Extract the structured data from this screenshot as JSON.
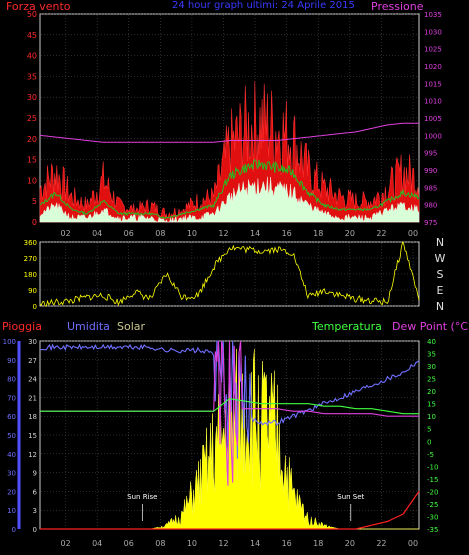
{
  "header": {
    "left_label": "Forza vento",
    "center_label": "24 hour graph ultimi: 24 Aprile 2015",
    "right_label": "Pressione",
    "colors": {
      "left": "#ff2a2a",
      "center": "#3a3aff",
      "right": "#e040e0"
    }
  },
  "wind_panel": {
    "y_ticks_left": [
      "0",
      "5",
      "10",
      "15",
      "20",
      "25",
      "30",
      "35",
      "40",
      "45",
      "50"
    ],
    "y_ticks_right": [
      "975",
      "980",
      "985",
      "990",
      "995",
      "1000",
      "1005",
      "1010",
      "1015",
      "1020",
      "1025",
      "1030",
      "1035"
    ],
    "x_ticks": [
      "02",
      "04",
      "06",
      "08",
      "10",
      "12",
      "14",
      "16",
      "18",
      "20",
      "22",
      "00"
    ],
    "ylim_left": [
      0,
      50
    ],
    "ylim_right": [
      975,
      1035
    ],
    "series": [
      {
        "name": "",
        "color": "#ff2020"
      },
      {
        "name": "",
        "color": "#20c020"
      },
      {
        "name": "",
        "color": "#ccffcc"
      },
      {
        "name": "",
        "color": "#e040e0"
      }
    ]
  },
  "direction_panel": {
    "y_ticks": [
      "0",
      "90",
      "180",
      "270",
      "360"
    ],
    "compass": [
      "N",
      "W",
      "S",
      "E",
      "N"
    ],
    "ylim": [
      0,
      360
    ],
    "color": "#ffff00"
  },
  "bottom_panel": {
    "labels": {
      "pioggia": "Pioggia",
      "umidita": "Umidita",
      "solar": "Solar",
      "temperatura": "Temperatura",
      "dewpoint": "Dew Point (°C)"
    },
    "label_colors": {
      "pioggia": "#ff2a2a",
      "umidita": "#7070ff",
      "solar": "#c8c890",
      "temperatura": "#40ff40",
      "dewpoint": "#e040e0"
    },
    "y_ticks_left": [
      "0",
      "10",
      "20",
      "30",
      "40",
      "50",
      "60",
      "70",
      "80",
      "90",
      "100"
    ],
    "y_ticks_hum": [
      "0",
      "3",
      "6",
      "9",
      "12",
      "15",
      "18",
      "21",
      "24",
      "27",
      "30"
    ],
    "y_ticks_right": [
      "-35",
      "-30",
      "-25",
      "-20",
      "-15",
      "-10",
      "-5",
      "0",
      "5",
      "10",
      "15",
      "20",
      "25",
      "30",
      "35",
      "40"
    ],
    "x_ticks": [
      "02",
      "04",
      "06",
      "08",
      "10",
      "12",
      "14",
      "16",
      "18",
      "20",
      "22",
      "00"
    ],
    "sunrise_label": "Sun Rise",
    "sunset_label": "Sun Set"
  },
  "chart_data": [
    {
      "type": "line",
      "x": [
        0,
        1,
        2,
        3,
        4,
        5,
        6,
        7,
        8,
        9,
        10,
        11,
        12,
        13,
        14,
        15,
        16,
        17,
        18,
        19,
        20,
        21,
        22,
        23,
        24
      ],
      "series": [
        {
          "name": "",
          "axis": "left",
          "values": [
            8,
            12,
            6,
            4,
            10,
            4,
            3,
            4,
            2,
            3,
            5,
            6,
            18,
            22,
            24,
            22,
            20,
            12,
            8,
            6,
            5,
            5,
            8,
            12,
            10
          ]
        },
        {
          "name": "",
          "axis": "left",
          "values": [
            4,
            7,
            3,
            2,
            5,
            2,
            2,
            2,
            1,
            2,
            3,
            4,
            11,
            13,
            14,
            13,
            12,
            7,
            4,
            3,
            3,
            3,
            5,
            7,
            6
          ]
        },
        {
          "name": "",
          "axis": "left",
          "values": [
            2,
            4,
            1,
            1,
            3,
            1,
            1,
            1,
            0,
            1,
            1,
            2,
            6,
            8,
            9,
            8,
            7,
            4,
            2,
            1,
            1,
            1,
            3,
            4,
            3
          ]
        },
        {
          "name": "",
          "axis": "right",
          "values": [
            1000,
            999.5,
            999,
            998.5,
            998,
            998,
            998,
            998,
            998,
            998,
            998,
            998,
            998.5,
            998.5,
            998.5,
            998.5,
            999,
            999.5,
            1000,
            1000.5,
            1001,
            1002,
            1003,
            1003.5,
            1003.5
          ]
        }
      ],
      "xlabel": "",
      "ylabel": "",
      "ylim": [
        0,
        50
      ],
      "y2lim": [
        975,
        1035
      ]
    },
    {
      "type": "line",
      "x": [
        0,
        1,
        2,
        3,
        4,
        5,
        6,
        7,
        8,
        9,
        10,
        11,
        12,
        13,
        14,
        15,
        16,
        17,
        18,
        19,
        20,
        21,
        22,
        23,
        24
      ],
      "series": [
        {
          "name": "",
          "values": [
            10,
            20,
            30,
            50,
            60,
            20,
            80,
            40,
            180,
            50,
            60,
            220,
            330,
            320,
            310,
            320,
            300,
            50,
            90,
            60,
            40,
            30,
            20,
            360,
            40
          ]
        }
      ],
      "xlabel": "",
      "ylabel": "",
      "ylim": [
        0,
        360
      ]
    },
    {
      "type": "line",
      "x": [
        0,
        1,
        2,
        3,
        4,
        5,
        6,
        7,
        8,
        9,
        10,
        11,
        12,
        13,
        14,
        15,
        16,
        17,
        18,
        19,
        20,
        21,
        22,
        23,
        24
      ],
      "series": [
        {
          "name": "Umidita",
          "axis": "hum",
          "values": [
            29,
            29,
            29,
            29,
            29,
            29,
            29,
            29,
            28.5,
            28.5,
            28.5,
            28,
            22,
            18,
            17,
            17,
            18,
            19,
            20,
            21,
            22,
            23,
            24,
            25,
            27
          ]
        },
        {
          "name": "Temperatura",
          "axis": "right",
          "values": [
            12,
            12,
            12,
            12,
            12,
            12,
            12,
            12,
            12,
            12,
            12,
            12,
            17,
            16,
            15,
            15,
            15,
            15,
            14,
            14,
            13,
            13,
            12,
            11,
            11
          ]
        },
        {
          "name": "Dew Point (°C)",
          "axis": "right",
          "values": [
            12,
            12,
            12,
            12,
            12,
            12,
            12,
            12,
            12,
            12,
            12,
            12,
            13,
            13,
            13,
            13,
            12,
            12,
            11,
            11,
            11,
            11,
            10,
            10,
            10
          ]
        },
        {
          "name": "Solar",
          "axis": "left",
          "values": [
            0,
            0,
            0,
            0,
            0,
            0,
            0,
            0,
            2,
            8,
            25,
            45,
            60,
            70,
            65,
            55,
            20,
            6,
            2,
            0,
            0,
            0,
            0,
            0,
            0
          ]
        },
        {
          "name": "Pioggia",
          "axis": "left",
          "values": [
            0,
            0,
            0,
            0,
            0,
            0,
            0,
            0,
            0,
            0,
            0,
            0,
            0,
            0,
            0,
            0,
            0,
            0,
            0,
            0,
            0,
            2,
            4,
            8,
            20
          ]
        }
      ],
      "xlabel": "",
      "ylabel": "",
      "ylim": [
        0,
        100
      ],
      "y2lim": [
        -35,
        40
      ]
    }
  ]
}
